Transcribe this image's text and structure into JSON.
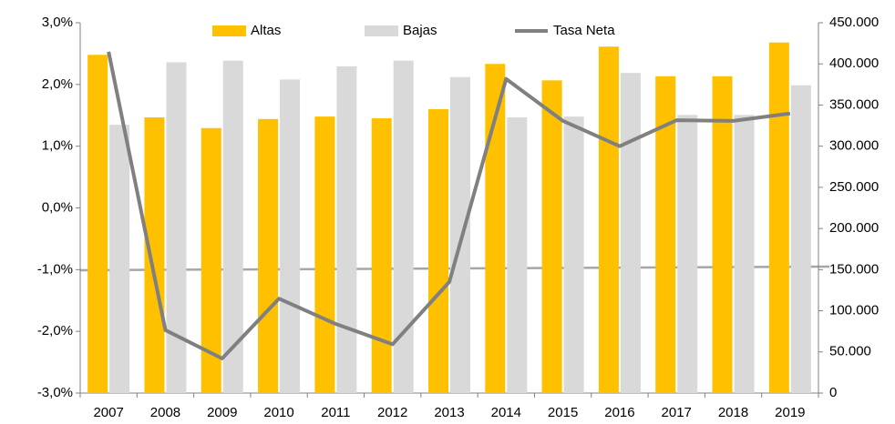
{
  "chart_data": {
    "type": "bar_line",
    "categories": [
      "2007",
      "2008",
      "2009",
      "2010",
      "2011",
      "2012",
      "2013",
      "2014",
      "2015",
      "2016",
      "2017",
      "2018",
      "2019"
    ],
    "series": [
      {
        "name": "Altas",
        "type": "bar",
        "axis": "y2",
        "color": "#ffc000",
        "values": [
          411000,
          335000,
          322000,
          333000,
          336000,
          334000,
          345000,
          400000,
          380000,
          421000,
          385000,
          385000,
          426000
        ]
      },
      {
        "name": "Bajas",
        "type": "bar",
        "axis": "y2",
        "color": "#d9d9d9",
        "values": [
          326000,
          402000,
          404000,
          381000,
          397000,
          404000,
          384000,
          335000,
          336000,
          389000,
          338000,
          338000,
          374000
        ]
      },
      {
        "name": "Tasa Neta",
        "type": "line",
        "axis": "y",
        "color": "#808080",
        "values": [
          2.53,
          -1.98,
          -2.44,
          -1.47,
          -1.88,
          -2.21,
          -1.2,
          2.09,
          1.41,
          1.0,
          1.42,
          1.41,
          1.53
        ]
      }
    ],
    "ylim": [
      -3,
      3
    ],
    "yticks": [
      {
        "value": -3,
        "label": "-3,0%"
      },
      {
        "value": -2,
        "label": "-2,0%"
      },
      {
        "value": -1,
        "label": "-1,0%"
      },
      {
        "value": 0,
        "label": "0,0%"
      },
      {
        "value": 1,
        "label": "1,0%"
      },
      {
        "value": 2,
        "label": "2,0%"
      },
      {
        "value": 3,
        "label": "3,0%"
      }
    ],
    "y2lim": [
      0,
      450000
    ],
    "y2ticks": [
      0,
      {
        "value": 50000,
        "label": "50.000"
      },
      {
        "value": 100000,
        "label": "100.000"
      },
      {
        "value": 150000,
        "label": "150.000"
      },
      {
        "value": 200000,
        "label": "200.000"
      },
      {
        "value": 250000,
        "label": "250.000"
      },
      {
        "value": 300000,
        "label": "300.000"
      },
      {
        "value": 350000,
        "label": "350.000"
      },
      {
        "value": 400000,
        "label": "400.000"
      },
      {
        "value": 450000,
        "label": "450.000"
      }
    ],
    "legend": "top"
  }
}
